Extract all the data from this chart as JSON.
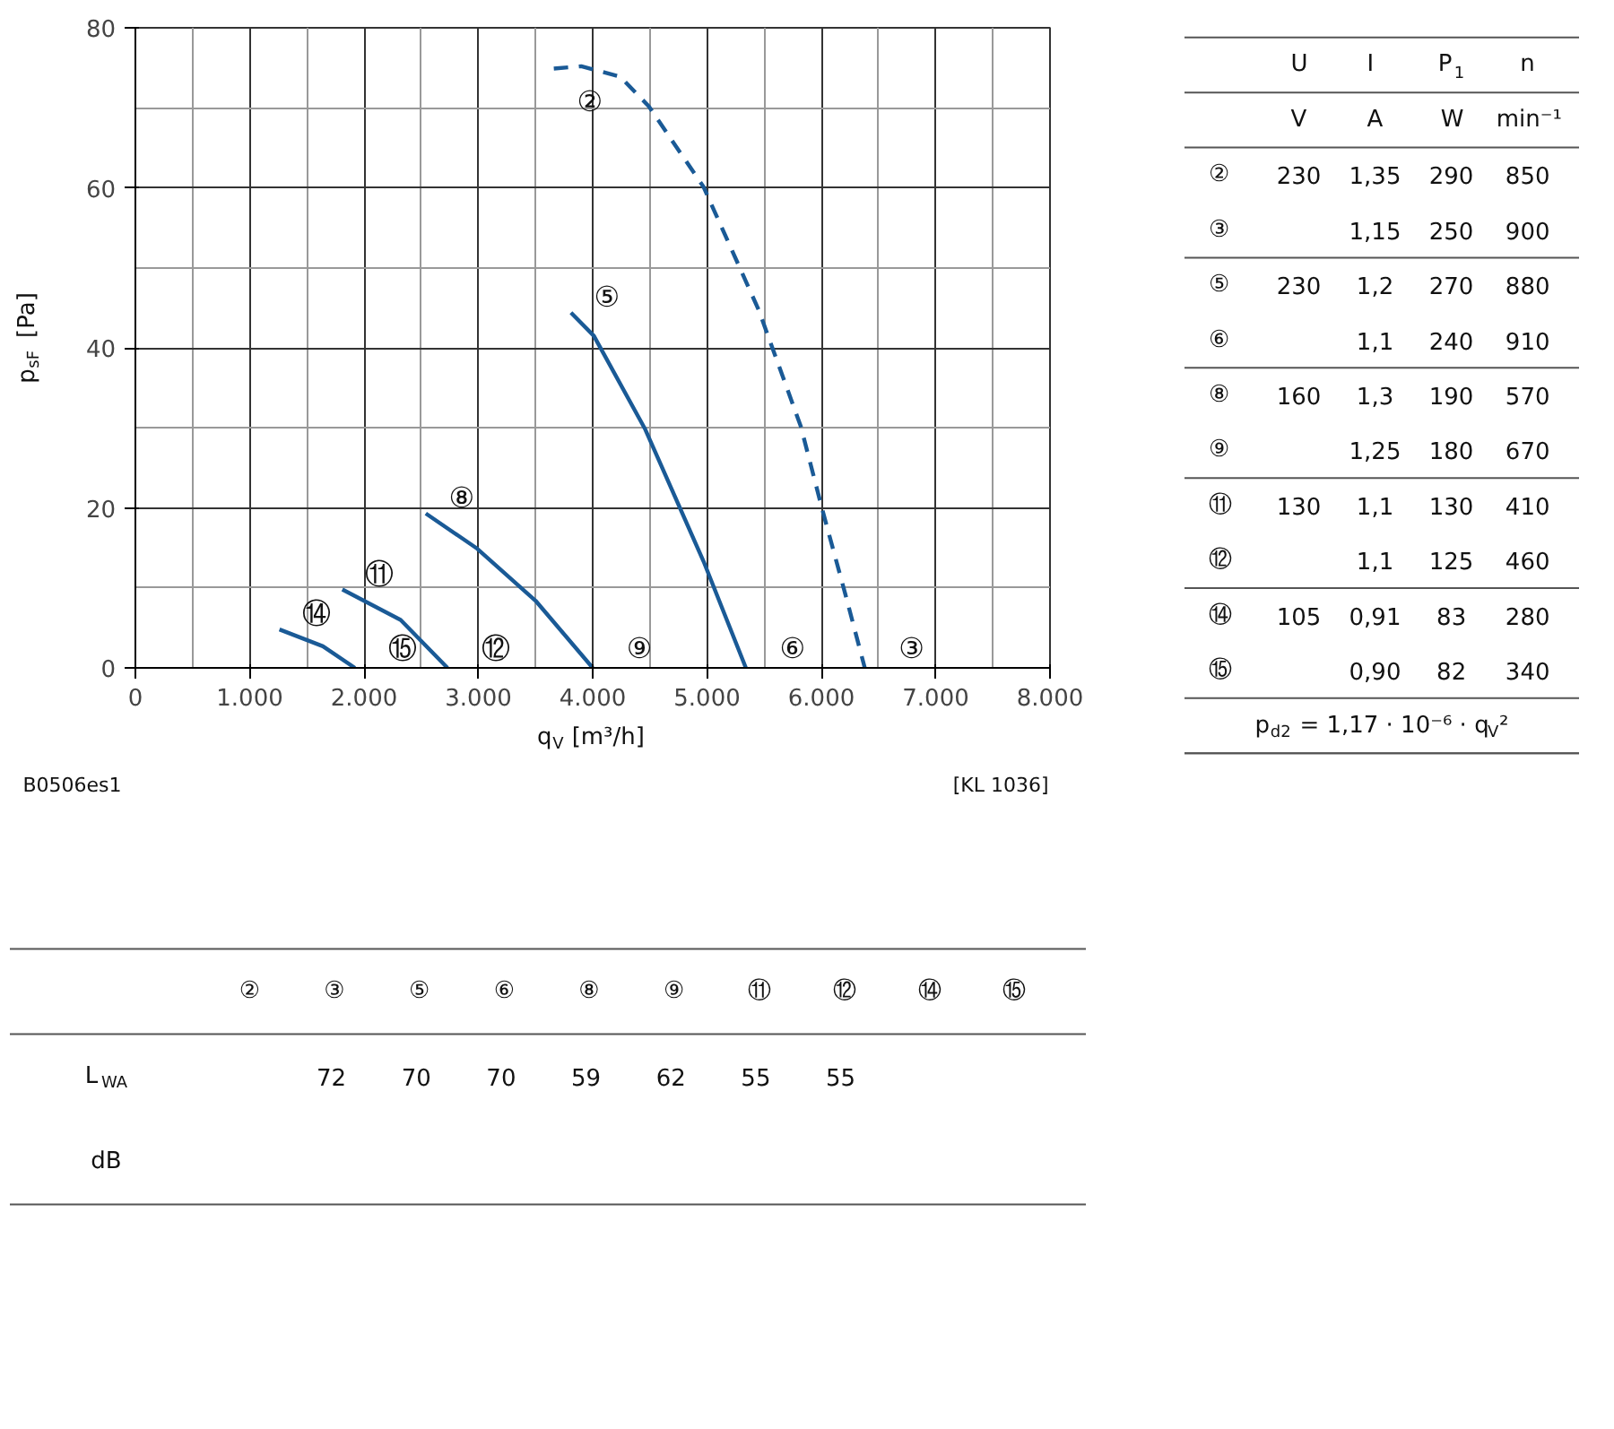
{
  "chart_data": [
    {
      "type": "line",
      "xlabel": "q$_{V}$ [m³/h]",
      "ylabel": "p$_{sF}$ [Pa]",
      "xlim": [
        0,
        8000
      ],
      "ylim": [
        0,
        80
      ],
      "xticks": [
        0,
        {
          "value": 1000,
          "label": "1.000"
        },
        {
          "value": 2000,
          "label": "2.000"
        },
        {
          "value": 3000,
          "label": "3.000"
        },
        {
          "value": 4000,
          "label": "4.000"
        },
        {
          "value": 5000,
          "label": "5.000"
        },
        {
          "value": 6000,
          "label": "6.000"
        },
        {
          "value": 7000,
          "label": "7.000"
        },
        {
          "value": 8000,
          "label": "8.000"
        }
      ],
      "yticks": [
        0,
        20,
        40,
        60,
        80
      ],
      "grid": true,
      "series": [
        {
          "color": "#1a5a96",
          "line_style": "dashed",
          "x": [
            3660,
            3900,
            4240,
            4490,
            4970,
            5450,
            5820,
            6010,
            6210,
            6380
          ],
          "values": [
            74.9,
            75.2,
            73.9,
            70.2,
            60.1,
            44.8,
            30.2,
            19.7,
            9.2,
            0
          ]
        },
        {
          "color": "#1a5a96",
          "line_style": "solid",
          "x": [
            3810,
            4010,
            4460,
            4970,
            5340
          ],
          "values": [
            44.4,
            41.5,
            29.8,
            13.3,
            0
          ]
        },
        {
          "color": "#1a5a96",
          "line_style": "solid",
          "x": [
            2540,
            2990,
            3500,
            4000
          ],
          "values": [
            19.3,
            14.9,
            8.4,
            0
          ]
        },
        {
          "color": "#1a5a96",
          "line_style": "solid",
          "x": [
            1810,
            2320,
            2730
          ],
          "values": [
            9.8,
            6.0,
            0
          ]
        },
        {
          "color": "#1a5a96",
          "line_style": "solid",
          "x": [
            1260,
            1640,
            1920
          ],
          "values": [
            4.8,
            2.7,
            0
          ]
        }
      ],
      "annotations": [
        {
          "text": "②",
          "x": 3660,
          "y": 74.9
        },
        {
          "text": "③",
          "x": 6380,
          "y": 0
        },
        {
          "text": "⑤",
          "x": 3810,
          "y": 44.4
        },
        {
          "text": "⑥",
          "x": 5340,
          "y": 0
        },
        {
          "text": "⑧",
          "x": 2540,
          "y": 19.3
        },
        {
          "text": "⑨",
          "x": 4000,
          "y": 0
        },
        {
          "text": "⑪",
          "x": 1810,
          "y": 9.8
        },
        {
          "text": "⑫",
          "x": 2730,
          "y": 0
        },
        {
          "text": "⑭",
          "x": 1260,
          "y": 4.8
        },
        {
          "text": "⑮",
          "x": 1920,
          "y": 0
        },
        "B0506es1",
        "[KL 1036]"
      ]
    },
    {
      "type": "other",
      "annotations": [
        "\tU\tI\tP$_{1}$\tn",
        "\tV\tA\tW\tmin⁻¹",
        "②\t230\t1,35\t290\t850",
        "③\t\t1,15\t250\t900",
        "⑤\t230\t1,2\t270\t880",
        "⑥\t\t1,1\t240\t910",
        "⑧\t160\t1,3\t190\t570",
        "⑨\t\t1,25\t180\t670",
        "⑪\t130\t1,1\t130\t410",
        "⑫\t\t1,1\t125\t460",
        "⑭\t105\t0,91\t83\t280",
        "⑮\t\t0,90\t82\t340",
        "p$_{d2}$ = 1,17 · 10⁻⁶ · q$_{V}$²"
      ]
    },
    {
      "type": "other",
      "annotations": [
        "\t②\t③\t⑤\t⑥\t⑧\t⑨\t⑪\t⑫\t⑭\t⑮",
        "L$_{WA}$",
        "\t\t72\t70\t70\t59\t62\t55\t55\t\t",
        "dB"
      ]
    }
  ]
}
